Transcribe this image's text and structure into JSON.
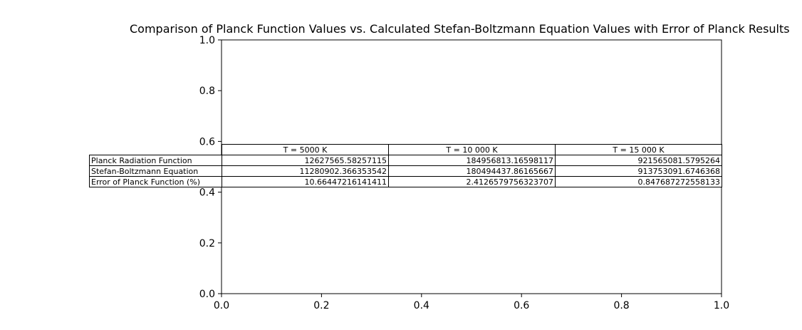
{
  "chart_data": {
    "type": "table",
    "title": "Comparison of Planck Function Values vs. Calculated Stefan-Boltzmann Equation Values with Error of Planck Results",
    "xlim": [
      0.0,
      1.0
    ],
    "ylim": [
      0.0,
      1.0
    ],
    "xticks": [
      "0.0",
      "0.2",
      "0.4",
      "0.6",
      "0.8",
      "1.0"
    ],
    "yticks": [
      "0.0",
      "0.2",
      "0.4",
      "0.6",
      "0.8",
      "1.0"
    ],
    "grid": false,
    "table": {
      "col_labels": [
        "T = 5000 K",
        "T = 10 000 K",
        "T = 15 000 K"
      ],
      "rows": [
        {
          "label": "Planck Radiation Function",
          "values": [
            "12627565.58257115",
            "184956813.16598117",
            "921565081.5795264"
          ]
        },
        {
          "label": "Stefan-Boltzmann Equation",
          "values": [
            "11280902.366353542",
            "180494437.86165667",
            "913753091.6746368"
          ]
        },
        {
          "label": "Error of Planck Function (%)",
          "values": [
            "10.66447216141411",
            "2.4126579756323707",
            "0.847687272558133"
          ]
        }
      ]
    }
  }
}
